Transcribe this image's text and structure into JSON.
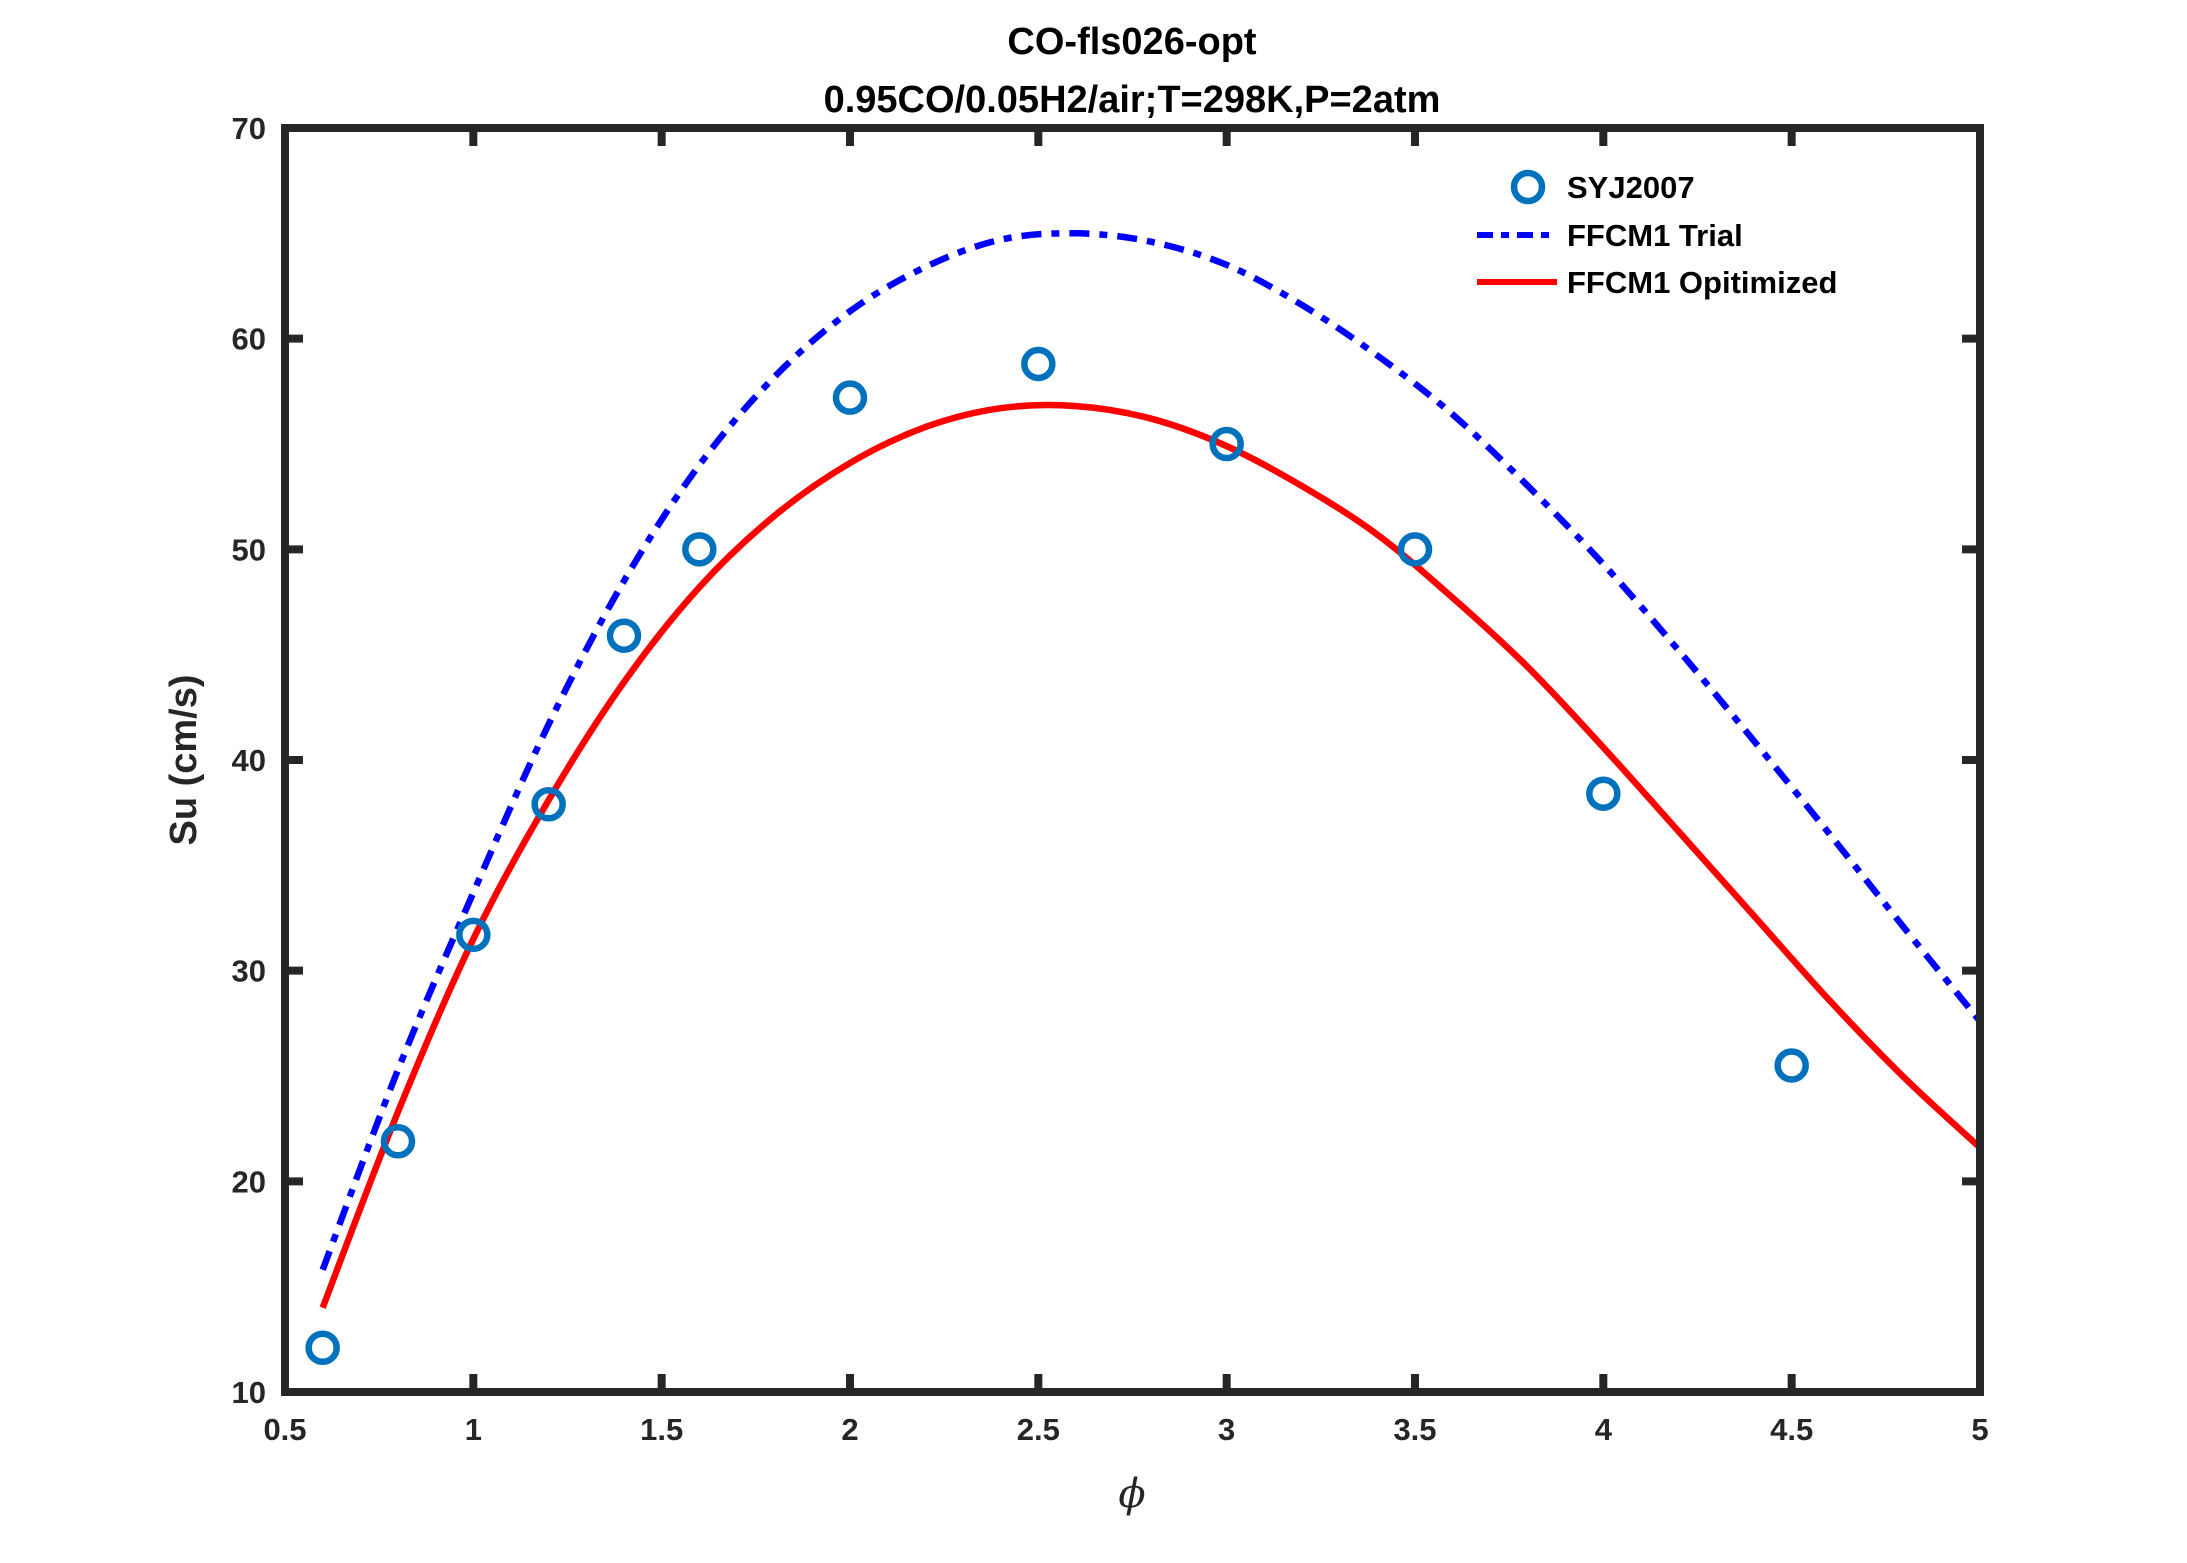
{
  "chart_data": {
    "type": "line",
    "title": "CO-fls026-opt",
    "subtitle": "0.95CO/0.05H2/air;T=298K,P=2atm",
    "xlabel": "ϕ",
    "ylabel": "Su (cm/s)",
    "xlim": [
      0.5,
      5
    ],
    "ylim": [
      10,
      70
    ],
    "xticks": [
      0.5,
      1,
      1.5,
      2,
      2.5,
      3,
      3.5,
      4,
      4.5,
      5
    ],
    "xtick_labels": [
      "0.5",
      "1",
      "1.5",
      "2",
      "2.5",
      "3",
      "3.5",
      "4",
      "4.5",
      "5"
    ],
    "yticks": [
      10,
      20,
      30,
      40,
      50,
      60,
      70
    ],
    "ytick_labels": [
      "10",
      "20",
      "30",
      "40",
      "50",
      "60",
      "70"
    ],
    "grid": false,
    "legend_position": "top-right",
    "series": [
      {
        "name": "SYJ2007",
        "kind": "scatter",
        "marker": "circle-open",
        "color": "#0072BD",
        "x": [
          0.6,
          0.8,
          1.0,
          1.2,
          1.4,
          1.6,
          2.0,
          2.5,
          3.0,
          3.5,
          4.0,
          4.5
        ],
        "y": [
          12.1,
          21.9,
          31.7,
          37.9,
          45.9,
          50.0,
          57.2,
          58.8,
          55.0,
          50.0,
          38.4,
          25.5
        ]
      },
      {
        "name": "FFCM1 Trial",
        "kind": "line",
        "line_style": "dash-dot",
        "color": "#0000FF",
        "x": [
          0.6,
          0.8,
          1.0,
          1.2,
          1.4,
          1.6,
          1.8,
          2.0,
          2.2,
          2.4,
          2.6,
          2.8,
          3.0,
          3.2,
          3.4,
          3.6,
          3.8,
          4.0,
          4.2,
          4.4,
          4.6,
          4.8,
          5.0
        ],
        "y": [
          15.8,
          25.3,
          33.7,
          41.7,
          48.5,
          54.0,
          58.2,
          61.3,
          63.4,
          64.7,
          65.0,
          64.6,
          63.5,
          61.6,
          59.2,
          56.4,
          53.0,
          49.3,
          45.2,
          40.9,
          36.5,
          32.0,
          27.6
        ]
      },
      {
        "name": "FFCM1 Opitimized",
        "kind": "line",
        "line_style": "solid",
        "color": "#FF0000",
        "x": [
          0.6,
          0.8,
          1.0,
          1.2,
          1.4,
          1.6,
          1.8,
          2.0,
          2.2,
          2.4,
          2.6,
          2.8,
          3.0,
          3.2,
          3.4,
          3.6,
          3.8,
          4.0,
          4.2,
          4.4,
          4.6,
          4.8,
          5.0
        ],
        "y": [
          14.0,
          23.3,
          31.5,
          38.1,
          43.7,
          48.2,
          51.6,
          54.1,
          55.8,
          56.7,
          56.8,
          56.2,
          54.9,
          53.0,
          50.7,
          47.7,
          44.4,
          40.6,
          36.6,
          32.6,
          28.6,
          24.9,
          21.6
        ]
      }
    ]
  }
}
